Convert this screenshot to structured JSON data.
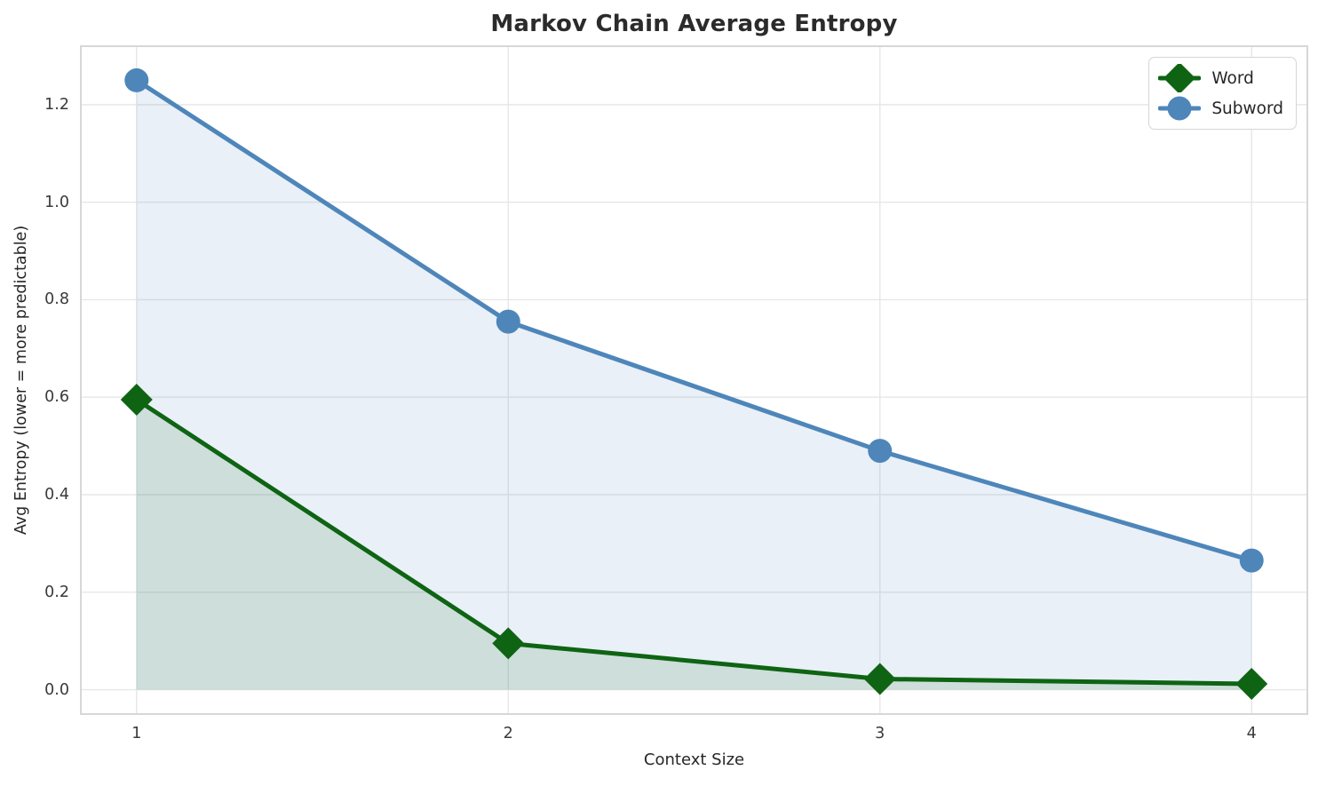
{
  "title": "Markov Chain Average Entropy",
  "chart_data": {
    "type": "line",
    "title": "Markov Chain Average Entropy",
    "xlabel": "Context Size",
    "ylabel": "Avg Entropy (lower = more predictable)",
    "x": [
      1,
      2,
      3,
      4
    ],
    "series": [
      {
        "name": "Word",
        "values": [
          0.595,
          0.095,
          0.022,
          0.012
        ],
        "color": "#0e6413",
        "marker": "diamond",
        "area_fill": true
      },
      {
        "name": "Subword",
        "values": [
          1.25,
          0.755,
          0.49,
          0.265
        ],
        "color": "#4e86ba",
        "marker": "circle",
        "area_fill": true
      }
    ],
    "xticks": [
      "1",
      "2",
      "3",
      "4"
    ],
    "yticks": [
      "0.0",
      "0.2",
      "0.4",
      "0.6",
      "0.8",
      "1.0",
      "1.2"
    ],
    "xlim": [
      0.85,
      4.15
    ],
    "ylim": [
      -0.05,
      1.32
    ],
    "grid": true,
    "grid_color": "#e7e7e7",
    "spine_color": "#d7d7d7",
    "fill_alpha": 0.12,
    "legend_position": "upper right",
    "legend_entries": [
      "Word",
      "Subword"
    ]
  }
}
